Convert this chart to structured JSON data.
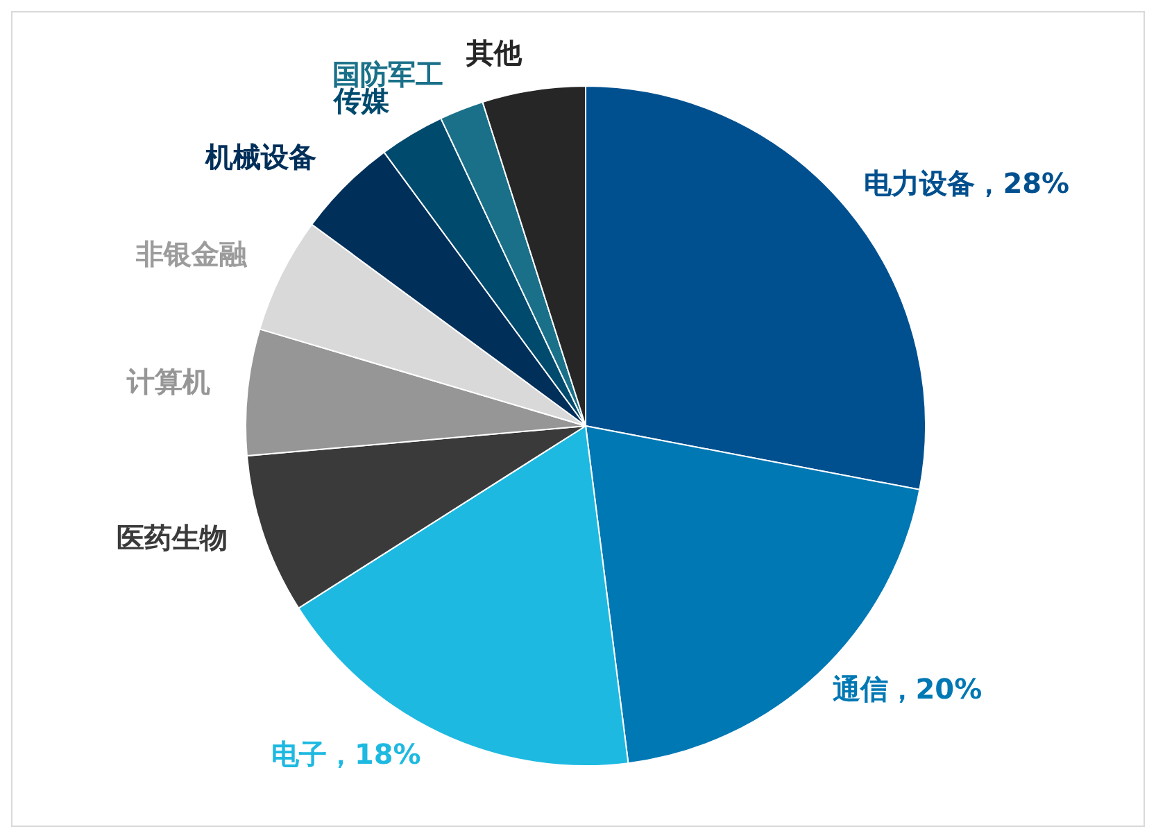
{
  "chart_data": {
    "type": "pie",
    "categories": [
      "电力设备",
      "通信",
      "电子",
      "医药生物",
      "计算机",
      "非银金融",
      "机械设备",
      "传媒",
      "国防军工",
      "其他"
    ],
    "values": [
      28,
      20,
      18,
      7.6,
      6,
      5.5,
      4.8,
      3.1,
      2.1,
      4.9
    ],
    "value_labels": [
      "28%",
      "20%",
      "18%",
      null,
      null,
      null,
      null,
      null,
      null,
      null
    ],
    "colors": [
      "#00508f",
      "#0078b4",
      "#1eb9e1",
      "#3a3a3a",
      "#969696",
      "#d9d9d9",
      "#002f5a",
      "#004a6e",
      "#1a7089",
      "#262626"
    ],
    "legend": false
  }
}
